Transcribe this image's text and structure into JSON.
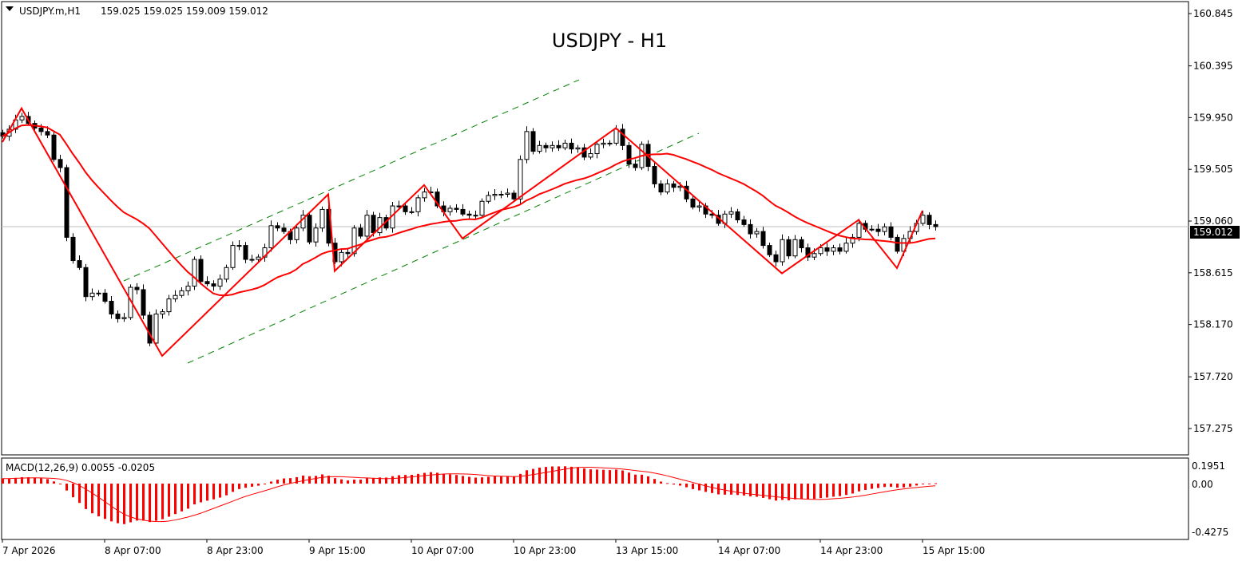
{
  "header": {
    "collapse_icon": "triangle-down-icon",
    "symbol": "USDJPY.m,H1",
    "ohlc": "159.025 159.025 159.009 159.012"
  },
  "title": "USDJPY - H1",
  "price_axis": {
    "ticks": [
      "160.845",
      "160.395",
      "159.950",
      "159.505",
      "159.060",
      "158.615",
      "158.170",
      "157.720",
      "157.275"
    ],
    "current_price": "159.012"
  },
  "time_axis": {
    "ticks": [
      "7 Apr 2026",
      "8 Apr 07:00",
      "8 Apr 23:00",
      "9 Apr 15:00",
      "10 Apr 07:00",
      "10 Apr 23:00",
      "13 Apr 15:00",
      "14 Apr 07:00",
      "14 Apr 23:00",
      "15 Apr 15:00"
    ]
  },
  "macd": {
    "label": "MACD(12,26,9) 0.0055 -0.0205",
    "ticks": [
      "0.1951",
      "0.00",
      "-0.4275"
    ]
  },
  "colors": {
    "bull_body": "#ffffff",
    "bear_body": "#000000",
    "ma": "#ff0000",
    "zigzag": "#ff0000",
    "channel": "#008000",
    "macd": "#ff0000",
    "price_line": "#c0c0c0",
    "price_badge": "#000000"
  },
  "chart_data": {
    "type": "candlestick",
    "symbol": "USDJPY.m",
    "timeframe": "H1",
    "price_range": [
      157.1,
      160.9
    ],
    "bars_per_time_label": 16,
    "closes": [
      159.79,
      159.85,
      159.93,
      159.96,
      159.9,
      159.86,
      159.83,
      159.8,
      159.59,
      159.52,
      158.92,
      158.72,
      158.66,
      158.41,
      158.44,
      158.44,
      158.37,
      158.26,
      158.22,
      158.23,
      158.49,
      158.47,
      158.25,
      158.01,
      158.26,
      158.28,
      158.39,
      158.42,
      158.46,
      158.5,
      158.73,
      158.54,
      158.52,
      158.5,
      158.56,
      158.66,
      158.85,
      158.85,
      158.73,
      158.73,
      158.75,
      158.83,
      159.02,
      159.0,
      158.97,
      158.9,
      159.0,
      159.11,
      158.88,
      159.0,
      159.16,
      158.87,
      158.71,
      158.79,
      158.78,
      159.0,
      158.93,
      159.11,
      158.96,
      159.09,
      159.0,
      159.19,
      159.19,
      159.14,
      159.14,
      159.26,
      159.31,
      159.31,
      159.19,
      159.14,
      159.17,
      159.16,
      159.12,
      159.11,
      159.11,
      159.23,
      159.28,
      159.29,
      159.29,
      159.3,
      159.25,
      159.59,
      159.83,
      159.66,
      159.71,
      159.69,
      159.71,
      159.69,
      159.73,
      159.68,
      159.69,
      159.61,
      159.64,
      159.72,
      159.73,
      159.73,
      159.85,
      159.71,
      159.55,
      159.52,
      159.72,
      159.53,
      159.38,
      159.31,
      159.38,
      159.35,
      159.36,
      159.25,
      159.18,
      159.19,
      159.12,
      159.11,
      159.04,
      159.12,
      159.14,
      159.07,
      159.03,
      158.95,
      158.97,
      158.85,
      158.77,
      158.71,
      158.9,
      158.76,
      158.9,
      158.83,
      158.75,
      158.78,
      158.83,
      158.8,
      158.83,
      158.8,
      158.87,
      158.92,
      159.04,
      158.99,
      158.99,
      158.97,
      159.01,
      158.92,
      158.8,
      158.91,
      158.97,
      159.04,
      159.11,
      159.03,
      159.012
    ],
    "ma_period": 24,
    "zigzag": [
      [
        0,
        159.74
      ],
      [
        3,
        160.03
      ],
      [
        25,
        157.9
      ],
      [
        51,
        159.29
      ],
      [
        52,
        158.63
      ],
      [
        66,
        159.37
      ],
      [
        72,
        158.91
      ],
      [
        96,
        159.86
      ],
      [
        122,
        158.61
      ],
      [
        134,
        159.07
      ],
      [
        140,
        158.655
      ],
      [
        144,
        159.15
      ]
    ],
    "channel_lines": [
      {
        "from": [
          19,
          158.545
        ],
        "to": [
          90.25,
          160.275
        ]
      },
      {
        "from": [
          29,
          157.838
        ],
        "to": [
          109,
          159.815
        ]
      }
    ],
    "macd_params": [
      12,
      26,
      9
    ],
    "macd_range": [
      -0.4275,
      0.1951
    ]
  }
}
